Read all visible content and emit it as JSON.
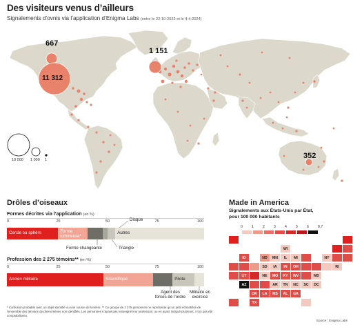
{
  "header": {
    "title": "Des visiteurs venus d’ailleurs",
    "subtitle": "Signalements d’ovnis via l’application d’Enigma Labs",
    "period": "(entre le 22-10-2022 et le 4-4-2024)"
  },
  "map": {
    "land_color": "#dcd8cc",
    "bubble_color": "#e8826a",
    "bubbles": [
      {
        "label": "667",
        "count": 667,
        "region": "Canada / Alaska"
      },
      {
        "label": "11 312",
        "count": 11312,
        "region": "États-Unis"
      },
      {
        "label": "1 151",
        "count": 1151,
        "region": "Royaume-Uni / Europe"
      },
      {
        "label": "352",
        "count": 352,
        "region": "Australie"
      }
    ],
    "legend": {
      "labels": [
        "10 000",
        "1 000",
        "1"
      ]
    }
  },
  "birds": {
    "heading": "Drôles d’oiseaux",
    "forms_chart": {
      "title": "Formes décrites via l’application",
      "unit": "(en %)",
      "ticks": [
        "0",
        "25",
        "50",
        "75",
        "100"
      ],
      "segments": [
        {
          "label": "Cercle ou sphère",
          "value": 26,
          "color": "#e0201e"
        },
        {
          "label": "Forme lumineuse*",
          "value": 15,
          "color": "#f2a495"
        },
        {
          "label": "Forme changeante",
          "value": 7.5,
          "color": "#6e6e66"
        },
        {
          "label": "Triangle",
          "value": 2.5,
          "color": "#a7a69a"
        },
        {
          "label": "Disque",
          "value": 4,
          "color": "#c9c7bb"
        },
        {
          "label": "Autres",
          "value": 45,
          "color": "#e6e4d9"
        }
      ],
      "callouts": {
        "forme_changeante": "Forme changeante",
        "triangle": "Triangle",
        "disque": "Disque"
      }
    },
    "profession_chart": {
      "title": "Profession des 2 275 témoins**",
      "unit": "(en %)",
      "ticks": [
        "0",
        "25",
        "50",
        "75",
        "100"
      ],
      "segments": [
        {
          "label": "Ancien militaire",
          "value": 49,
          "color": "#e0201e"
        },
        {
          "label": "Scientifique",
          "value": 25,
          "color": "#f2a495"
        },
        {
          "label": "Agent des forces de l’ordre",
          "value": 10,
          "color": "#6e6e66"
        },
        {
          "label": "Pilote",
          "value": 11,
          "color": "#c9c7bb"
        },
        {
          "label": "Militaire en exercice",
          "value": 5,
          "color": "#e6e4d9"
        }
      ],
      "callouts": {
        "agent": "Agent des forces de l’ordre",
        "militaire": "Militaire en exercice"
      }
    },
    "footnote": "* Confusion probable avec un objet identifié ou une source de lumière. ** Ce groupe de 2 275 personnes ne représente qu’un petit échantillon de l’ensemble des témoins de phénomènes non identifiés. Les personnes n’ayant pas renseigné leur profession, ou en ayant indiqué plusieurs, n’ont pas été comptabilisées."
  },
  "america": {
    "heading": "Made in America",
    "subtitle_line1": "Signalements aux États-Unis par État,",
    "subtitle_line2": "pour 100 000 habitants",
    "legend_labels": [
      "0",
      "1",
      "2",
      "3",
      "4",
      "5",
      "6",
      "8,7"
    ],
    "legend_colors": [
      "#f4c9bf",
      "#ee9a8a",
      "#e8706a",
      "#e04c48",
      "#d42a2a",
      "#b8181b",
      "#111111"
    ],
    "states": [
      {
        "code": "",
        "row": 0,
        "col": 0,
        "color": "#e0201e"
      },
      {
        "code": "",
        "row": 0,
        "col": 11,
        "color": "#e0201e"
      },
      {
        "code": "WI",
        "row": 1,
        "col": 5,
        "color": "#f4c9bf"
      },
      {
        "code": "",
        "row": 1,
        "col": 10,
        "color": "#e0201e"
      },
      {
        "code": "",
        "row": 1,
        "col": 11,
        "color": "#e04c48"
      },
      {
        "code": "ID",
        "row": 2,
        "col": 1,
        "color": "#e04c48"
      },
      {
        "code": "ND",
        "row": 2,
        "col": 3,
        "color": "#ee9a8a"
      },
      {
        "code": "MN",
        "row": 2,
        "col": 4,
        "color": "#f4c9bf"
      },
      {
        "code": "IL",
        "row": 2,
        "col": 5,
        "color": "#f4c9bf"
      },
      {
        "code": "MI",
        "row": 2,
        "col": 6,
        "color": "#f4c9bf"
      },
      {
        "code": "",
        "row": 2,
        "col": 7,
        "color": "#e04c48"
      },
      {
        "code": "NY",
        "row": 2,
        "col": 9,
        "color": "#f4c9bf"
      },
      {
        "code": "",
        "row": 2,
        "col": 10,
        "color": "#e04c48"
      },
      {
        "code": "",
        "row": 2,
        "col": 11,
        "color": "#e04c48"
      },
      {
        "code": "",
        "row": 3,
        "col": 0,
        "color": "#e04c48"
      },
      {
        "code": "",
        "row": 3,
        "col": 1,
        "color": "#e04c48"
      },
      {
        "code": "",
        "row": 3,
        "col": 2,
        "color": "#ee9a8a"
      },
      {
        "code": "SD",
        "row": 3,
        "col": 3,
        "color": "#f4c9bf"
      },
      {
        "code": "IA",
        "row": 3,
        "col": 4,
        "color": "#f4c9bf"
      },
      {
        "code": "IN",
        "row": 3,
        "col": 5,
        "color": "#e04c48"
      },
      {
        "code": "OH",
        "row": 3,
        "col": 6,
        "color": "#e04c48"
      },
      {
        "code": "",
        "row": 3,
        "col": 7,
        "color": "#e04c48"
      },
      {
        "code": "",
        "row": 3,
        "col": 8,
        "color": "#e04c48"
      },
      {
        "code": "",
        "row": 3,
        "col": 9,
        "color": "#f4c9bf"
      },
      {
        "code": "RI",
        "row": 3,
        "col": 10,
        "color": "#f4c9bf"
      },
      {
        "code": "",
        "row": 4,
        "col": 0,
        "color": "#e04c48"
      },
      {
        "code": "UT",
        "row": 4,
        "col": 1,
        "color": "#e04c48"
      },
      {
        "code": "",
        "row": 4,
        "col": 2,
        "color": "#d42a2a"
      },
      {
        "code": "NE",
        "row": 4,
        "col": 3,
        "color": "#f4c9bf"
      },
      {
        "code": "MO",
        "row": 4,
        "col": 4,
        "color": "#e04c48"
      },
      {
        "code": "KY",
        "row": 4,
        "col": 5,
        "color": "#e04c48"
      },
      {
        "code": "WV",
        "row": 4,
        "col": 6,
        "color": "#e04c48"
      },
      {
        "code": "",
        "row": 4,
        "col": 7,
        "color": "#e04c48"
      },
      {
        "code": "MD",
        "row": 4,
        "col": 8,
        "color": "#f4c9bf"
      },
      {
        "code": "AZ",
        "row": 5,
        "col": 1,
        "color": "#111111"
      },
      {
        "code": "",
        "row": 5,
        "col": 2,
        "color": "#e04c48"
      },
      {
        "code": "",
        "row": 5,
        "col": 3,
        "color": "#e04c48"
      },
      {
        "code": "AR",
        "row": 5,
        "col": 4,
        "color": "#f4c9bf"
      },
      {
        "code": "TN",
        "row": 5,
        "col": 5,
        "color": "#f4c9bf"
      },
      {
        "code": "NC",
        "row": 5,
        "col": 6,
        "color": "#f4c9bf"
      },
      {
        "code": "SC",
        "row": 5,
        "col": 7,
        "color": "#f4c9bf"
      },
      {
        "code": "DC",
        "row": 5,
        "col": 8,
        "color": "#f4c9bf"
      },
      {
        "code": "OK",
        "row": 6,
        "col": 2,
        "color": "#e04c48"
      },
      {
        "code": "LA",
        "row": 6,
        "col": 3,
        "color": "#e04c48"
      },
      {
        "code": "MS",
        "row": 6,
        "col": 4,
        "color": "#e04c48"
      },
      {
        "code": "AL",
        "row": 6,
        "col": 5,
        "color": "#e04c48"
      },
      {
        "code": "GA",
        "row": 6,
        "col": 6,
        "color": "#e04c48"
      },
      {
        "code": "",
        "row": 7,
        "col": 0,
        "color": "#e04c48"
      },
      {
        "code": "TX",
        "row": 7,
        "col": 2,
        "color": "#e04c48"
      },
      {
        "code": "",
        "row": 7,
        "col": 7,
        "color": "#f4c9bf"
      }
    ]
  },
  "source": "Source : Enigma Labs"
}
